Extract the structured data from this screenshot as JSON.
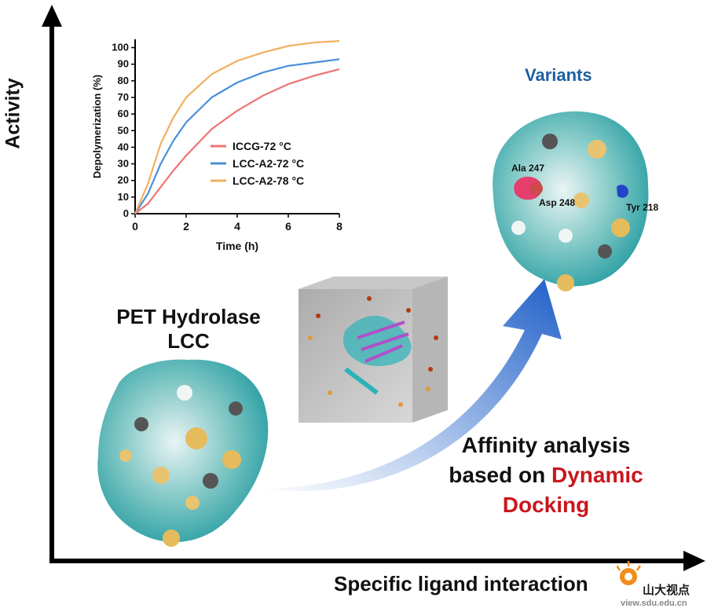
{
  "axes": {
    "y_label": "Activity",
    "x_label": "Specific ligand interaction"
  },
  "protein_left": {
    "title_line1": "PET Hydrolase",
    "title_line2": "LCC"
  },
  "variants": {
    "title": "Variants",
    "residues": [
      "Ala 247",
      "Asp 248",
      "Tyr 218"
    ]
  },
  "method": {
    "line1": "Affinity analysis",
    "line2_prefix": "based on",
    "line2_highlight": "Dynamic",
    "line3": "Docking"
  },
  "watermark": {
    "text": "山大视点",
    "url": "view.sdu.edu.cn"
  },
  "colors": {
    "ICCG": "#ee7474",
    "LCC72": "#4b8fd9",
    "LCC78": "#f0b060",
    "arrow": "#1f5fc8",
    "variants_title": "#1d5fa0",
    "highlight": "#c8171e"
  },
  "chart_data": {
    "type": "line",
    "xlabel": "Time (h)",
    "ylabel": "Depolymerization (%)",
    "xlim": [
      0,
      8
    ],
    "ylim": [
      0,
      105
    ],
    "xticks": [
      0,
      2,
      4,
      6,
      8
    ],
    "yticks": [
      0,
      10,
      20,
      30,
      40,
      50,
      60,
      70,
      80,
      90,
      100
    ],
    "legend_position": "center-right",
    "series": [
      {
        "name": "ICCG-72 °C",
        "color": "#ee7474",
        "x": [
          0,
          0.5,
          1,
          1.5,
          2,
          3,
          4,
          5,
          6,
          7,
          8
        ],
        "y": [
          0,
          6,
          16,
          26,
          35,
          51,
          62,
          71,
          78,
          83,
          87
        ]
      },
      {
        "name": "LCC-A2-72 °C",
        "color": "#4b8fd9",
        "x": [
          0,
          0.5,
          1,
          1.5,
          2,
          3,
          4,
          5,
          6,
          7,
          8
        ],
        "y": [
          0,
          12,
          30,
          44,
          55,
          70,
          79,
          85,
          89,
          91,
          93
        ]
      },
      {
        "name": "LCC-A2-78 °C",
        "color": "#f0b060",
        "x": [
          0,
          0.5,
          1,
          1.5,
          2,
          3,
          4,
          5,
          6,
          7,
          8
        ],
        "y": [
          0,
          18,
          42,
          58,
          70,
          84,
          92,
          97,
          101,
          103,
          104
        ]
      }
    ]
  }
}
